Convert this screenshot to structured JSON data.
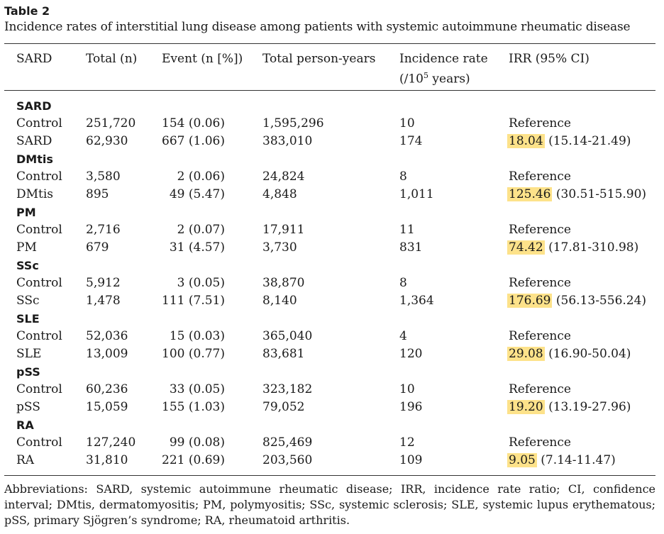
{
  "table": {
    "label": "Table 2",
    "caption": "Incidence rates of interstitial lung disease among patients with systemic autoimmune rheumatic disease",
    "headers": {
      "sard": "SARD",
      "total": "Total (n)",
      "event": "Event (n [%])",
      "person_years": "Total person-years",
      "incidence_line1": "Incidence rate",
      "incidence_line2_pre": "(/10",
      "incidence_line2_sup": "5",
      "incidence_line2_post": " years)",
      "irr": "IRR (95% CI)"
    },
    "groups": [
      {
        "name": "SARD",
        "control": {
          "label": "Control",
          "total": "251,720",
          "event": "154 (0.06)",
          "py": "1,595,296",
          "ir": "10",
          "irr": "Reference"
        },
        "case": {
          "label": "SARD",
          "total": "62,930",
          "event": "667 (1.06)",
          "py": "383,010",
          "ir": "174",
          "irr_point": "18.04",
          "irr_ci": "(15.14-21.49)"
        }
      },
      {
        "name": "DMtis",
        "control": {
          "label": "Control",
          "total": "3,580",
          "event": "2 (0.06)",
          "py": "24,824",
          "ir": "8",
          "irr": "Reference"
        },
        "case": {
          "label": "DMtis",
          "total": "895",
          "event": "49 (5.47)",
          "py": "4,848",
          "ir": "1,011",
          "irr_point": "125.46",
          "irr_ci": "(30.51-515.90)"
        }
      },
      {
        "name": "PM",
        "control": {
          "label": "Control",
          "total": "2,716",
          "event": "2 (0.07)",
          "py": "17,911",
          "ir": "11",
          "irr": "Reference"
        },
        "case": {
          "label": "PM",
          "total": "679",
          "event": "31 (4.57)",
          "py": "3,730",
          "ir": "831",
          "irr_point": "74.42",
          "irr_ci": "(17.81-310.98)"
        }
      },
      {
        "name": "SSc",
        "control": {
          "label": "Control",
          "total": "5,912",
          "event": "3 (0.05)",
          "py": "38,870",
          "ir": "8",
          "irr": "Reference"
        },
        "case": {
          "label": "SSc",
          "total": "1,478",
          "event": "111 (7.51)",
          "py": "8,140",
          "ir": "1,364",
          "irr_point": "176.69",
          "irr_ci": "(56.13-556.24)"
        }
      },
      {
        "name": "SLE",
        "control": {
          "label": "Control",
          "total": "52,036",
          "event": "15 (0.03)",
          "py": "365,040",
          "ir": "4",
          "irr": "Reference"
        },
        "case": {
          "label": "SLE",
          "total": "13,009",
          "event": "100 (0.77)",
          "py": "83,681",
          "ir": "120",
          "irr_point": "29.08",
          "irr_ci": "(16.90-50.04)"
        }
      },
      {
        "name": "pSS",
        "control": {
          "label": "Control",
          "total": "60,236",
          "event": "33 (0.05)",
          "py": "323,182",
          "ir": "10",
          "irr": "Reference"
        },
        "case": {
          "label": "pSS",
          "total": "15,059",
          "event": "155 (1.03)",
          "py": "79,052",
          "ir": "196",
          "irr_point": "19.20",
          "irr_ci": "(13.19-27.96)"
        }
      },
      {
        "name": "RA",
        "control": {
          "label": "Control",
          "total": "127,240",
          "event": "99 (0.08)",
          "py": "825,469",
          "ir": "12",
          "irr": "Reference"
        },
        "case": {
          "label": "RA",
          "total": "31,810",
          "event": "221 (0.69)",
          "py": "203,560",
          "ir": "109",
          "irr_point": "9.05",
          "irr_ci": "(7.14-11.47)"
        }
      }
    ],
    "footnote": "Abbreviations: SARD, systemic autoimmune rheumatic disease; IRR, incidence rate ratio; CI, confidence interval; DMtis, dermatomyositis; PM, polymyositis; SSc, systemic sclerosis; SLE, systemic lupus erythematous; pSS, primary Sjögren’s syndrome; RA, rheumatoid arthritis.",
    "highlight_color": "#fde28a"
  }
}
